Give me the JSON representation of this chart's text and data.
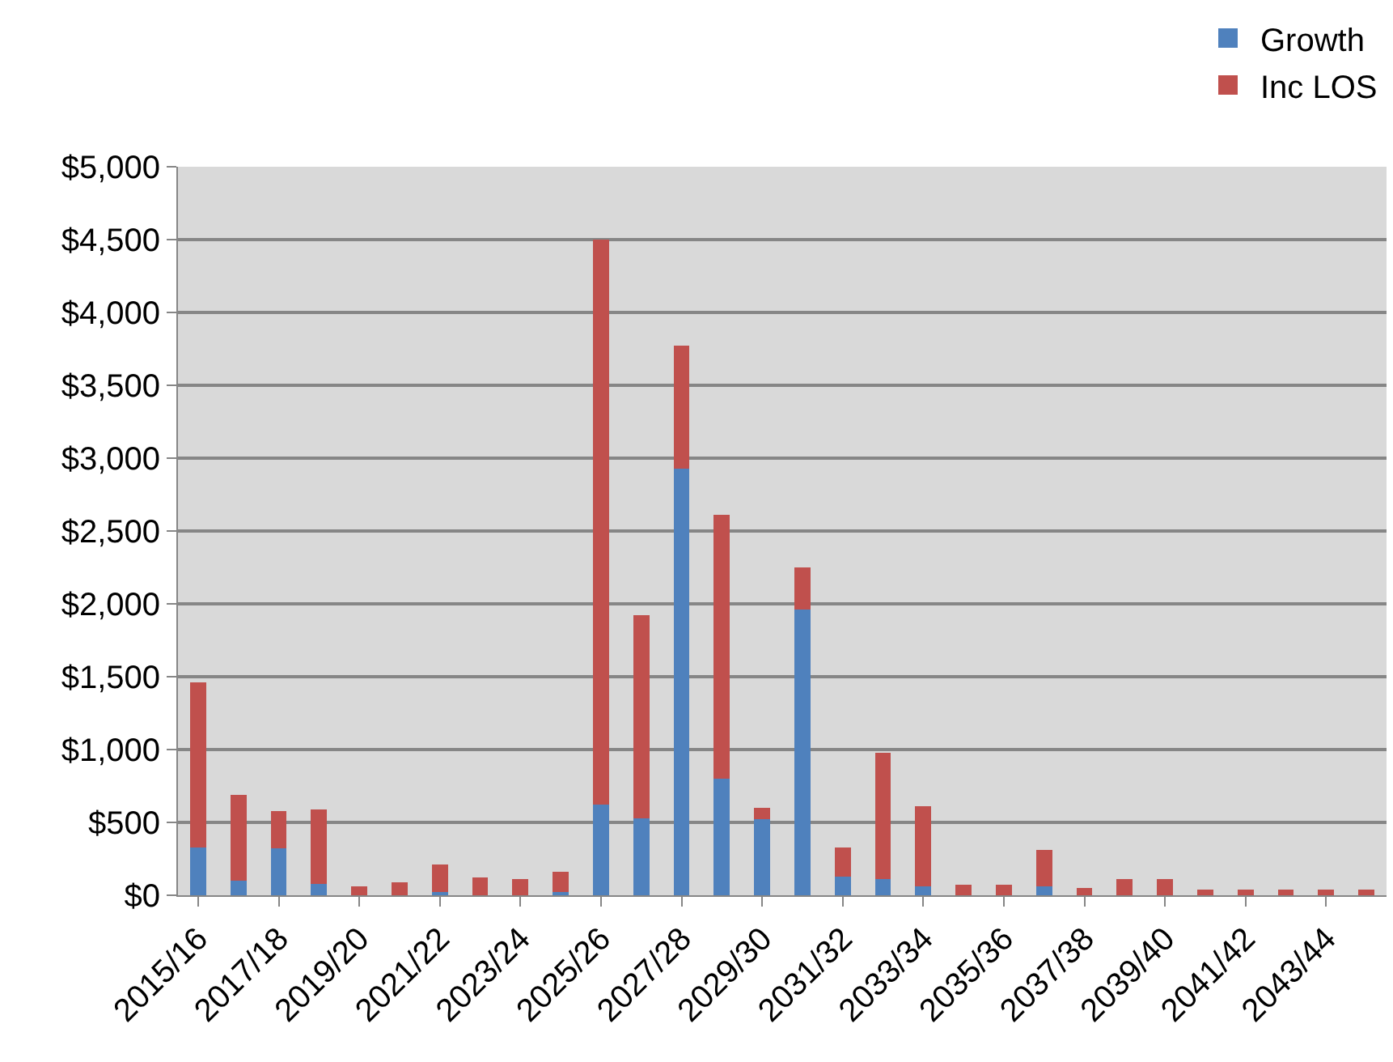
{
  "chart_data": {
    "type": "bar",
    "stacked": true,
    "categories": [
      "2015/16",
      null,
      "2017/18",
      null,
      "2019/20",
      null,
      "2021/22",
      null,
      "2023/24",
      null,
      "2025/26",
      null,
      "2027/28",
      null,
      "2029/30",
      null,
      "2031/32",
      null,
      "2033/34",
      null,
      "2035/36",
      null,
      "2037/38",
      null,
      "2039/40",
      null,
      "2041/42",
      null,
      "2043/44",
      null
    ],
    "series": [
      {
        "name": "Growth",
        "color": "#4f81bd",
        "values": [
          330,
          100,
          320,
          80,
          0,
          0,
          20,
          0,
          0,
          20,
          620,
          530,
          2930,
          800,
          520,
          1960,
          130,
          110,
          60,
          0,
          0,
          60,
          0,
          0,
          0,
          0,
          0,
          0,
          0,
          0
        ]
      },
      {
        "name": "Inc LOS",
        "color": "#c0504d",
        "values": [
          1130,
          590,
          260,
          510,
          60,
          90,
          190,
          120,
          110,
          140,
          3880,
          1390,
          840,
          1810,
          80,
          290,
          200,
          870,
          550,
          70,
          70,
          250,
          50,
          110,
          110,
          40,
          40,
          40,
          40,
          40
        ]
      }
    ],
    "ylim": [
      0,
      5000
    ],
    "yticks": [
      {
        "value": 0,
        "label": "$0"
      },
      {
        "value": 500,
        "label": "$500"
      },
      {
        "value": 1000,
        "label": "$1,000"
      },
      {
        "value": 1500,
        "label": "$1,500"
      },
      {
        "value": 2000,
        "label": "$2,000"
      },
      {
        "value": 2500,
        "label": "$2,500"
      },
      {
        "value": 3000,
        "label": "$3,000"
      },
      {
        "value": 3500,
        "label": "$3,500"
      },
      {
        "value": 4000,
        "label": "$4,000"
      },
      {
        "value": 4500,
        "label": "$4,500"
      },
      {
        "value": 5000,
        "label": "$5,000"
      }
    ],
    "grid": "y",
    "legend": "top right"
  }
}
